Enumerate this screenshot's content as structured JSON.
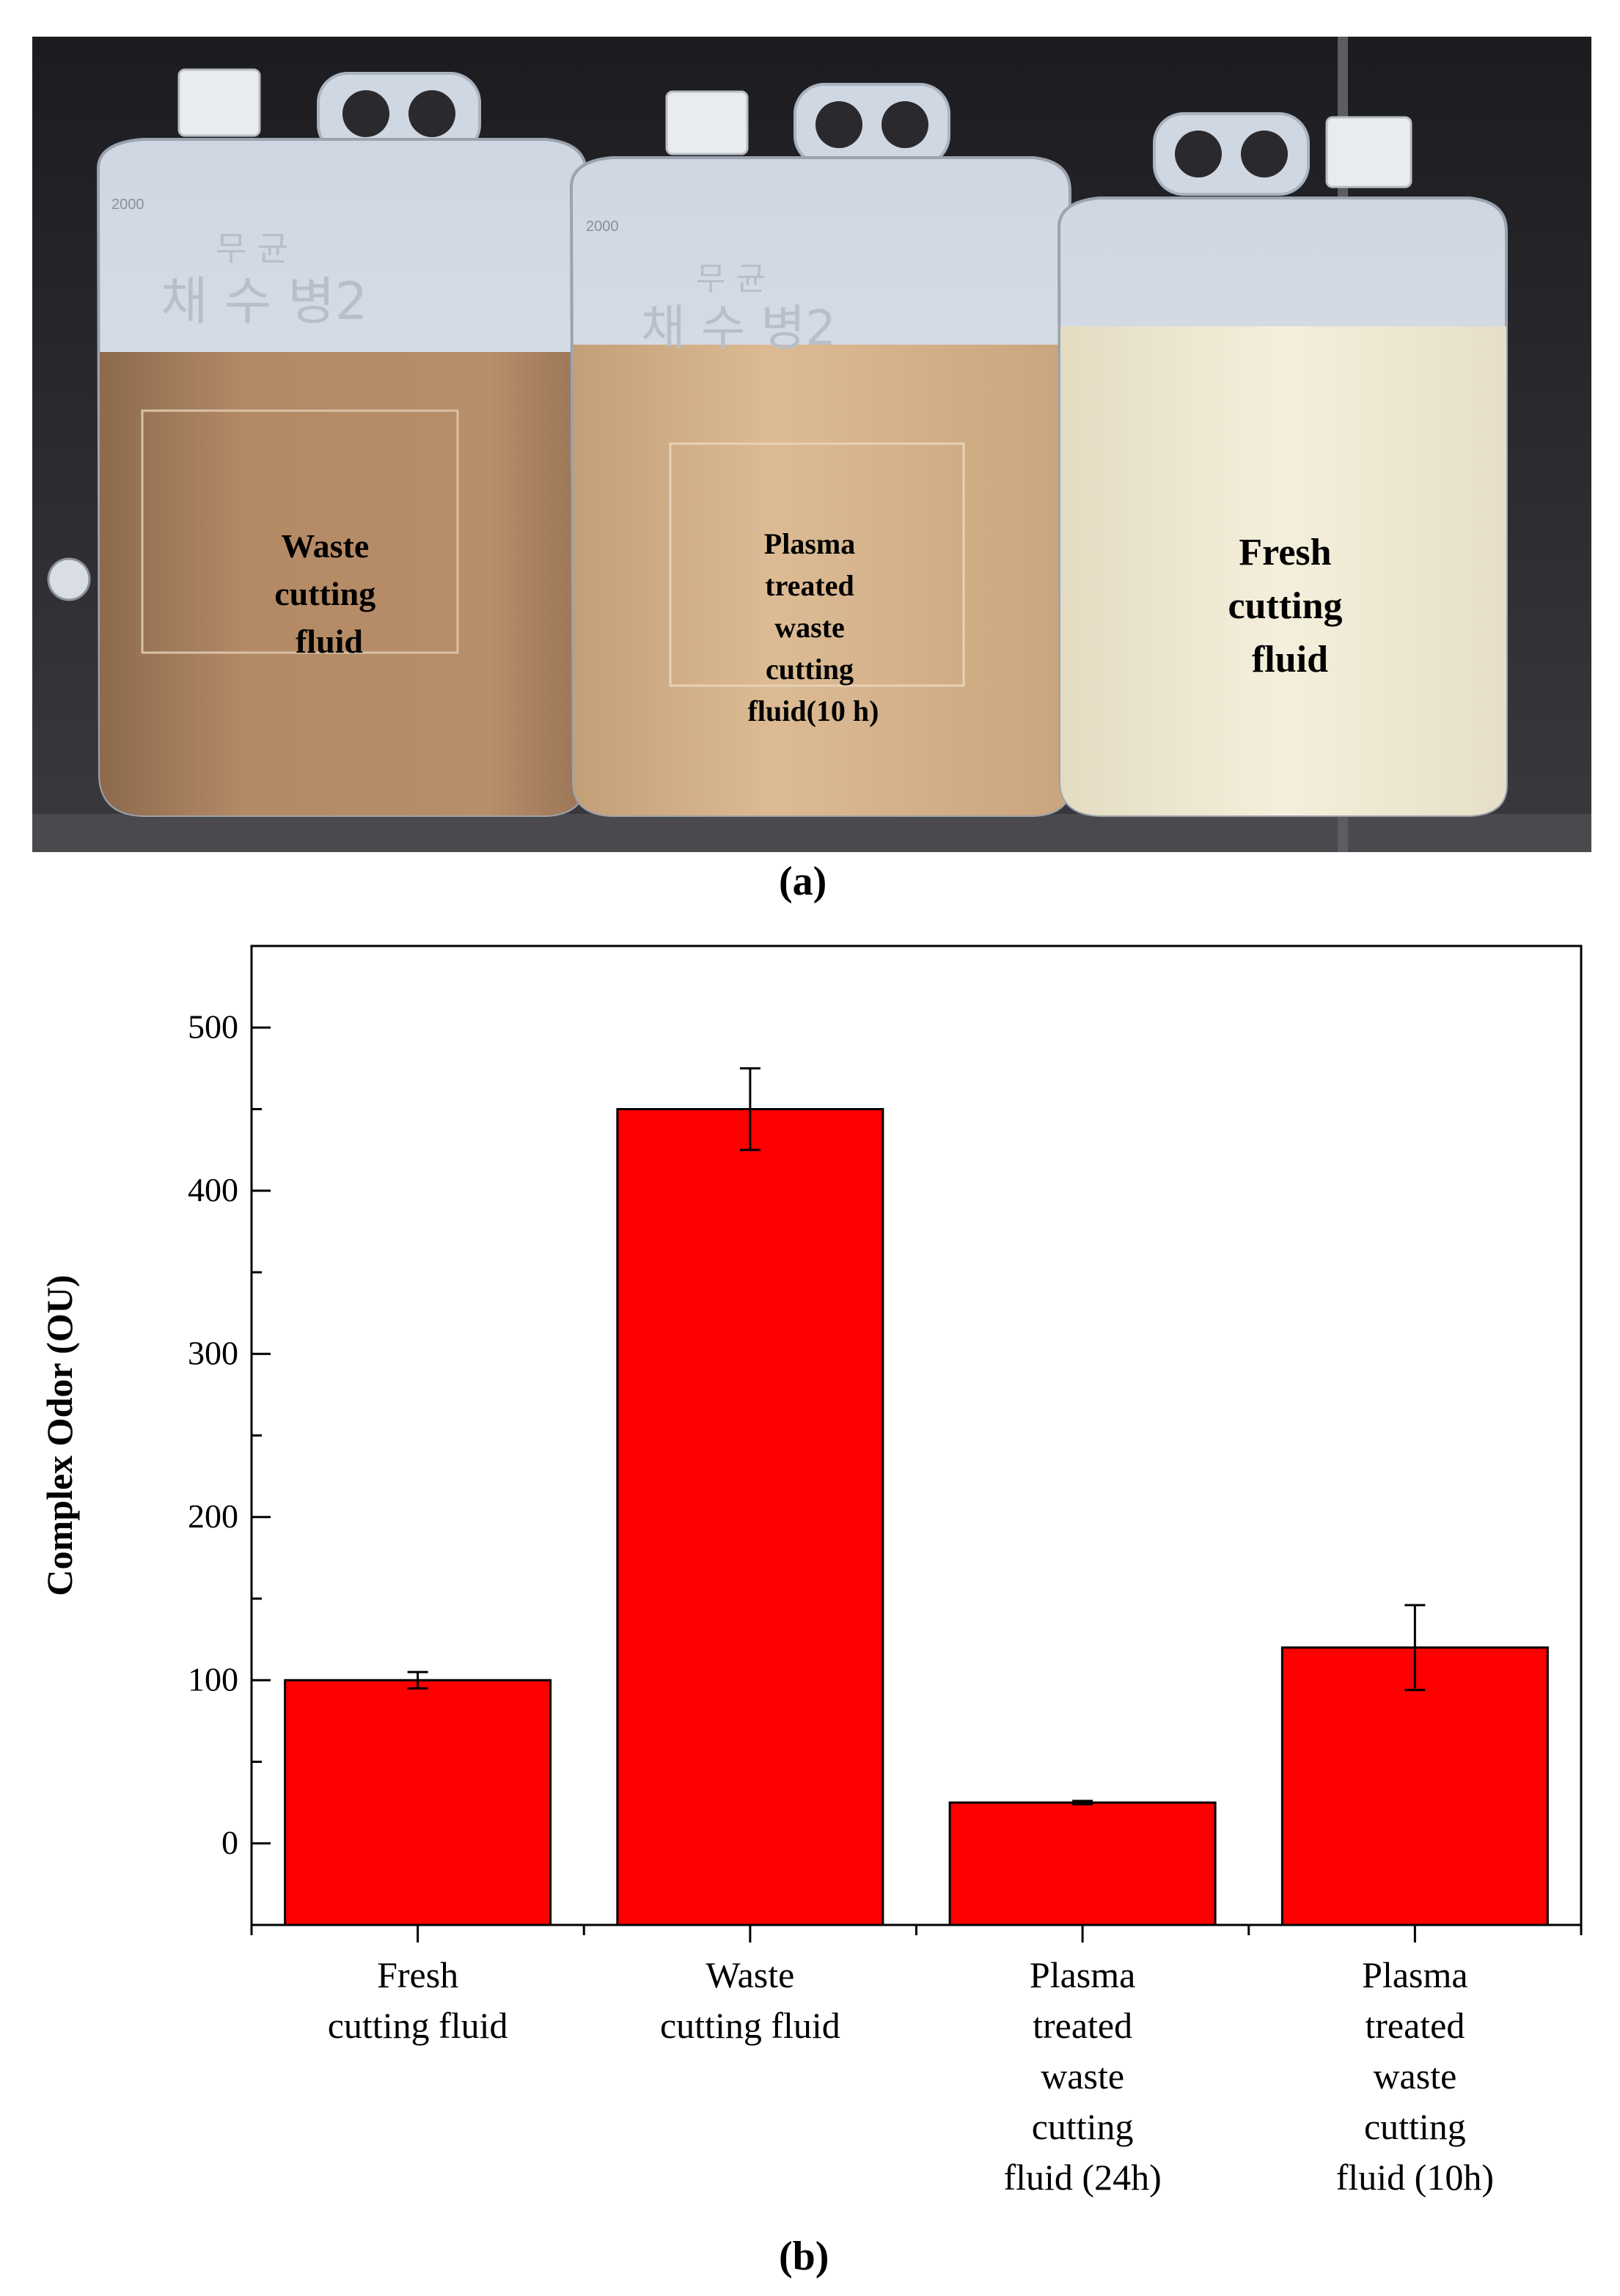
{
  "photo": {
    "labels": [
      [
        "Waste",
        "cutting",
        "fluid"
      ],
      [
        "Plasma",
        "treated",
        "waste",
        "cutting",
        "fluid(10 h)"
      ],
      [
        "Fresh",
        "cutting",
        "fluid"
      ]
    ],
    "jug_markings": {
      "volume_mark": "2000",
      "korean_text_line1": "무 균",
      "korean_text_line2": "채 수 병2"
    },
    "colors": {
      "background": "#2a2a2e",
      "waste_fluid": "#b48a66",
      "plasma_fluid": "#d9b68e",
      "fresh_fluid": "#f1ecd7",
      "jug_plastic": "#dde4ee"
    }
  },
  "panel_labels": {
    "a": "(a)",
    "b": "(b)"
  },
  "chart_data": {
    "type": "bar",
    "title": "",
    "ylabel": "Complex Odor (OU)",
    "xlabel": "",
    "ylim": [
      -50,
      550
    ],
    "yticks": [
      0,
      100,
      200,
      300,
      400,
      500
    ],
    "bar_color": "#ff0000",
    "categories": [
      [
        "Fresh",
        "cutting fluid"
      ],
      [
        "Waste",
        "cutting fluid"
      ],
      [
        "Plasma",
        "treated",
        "waste",
        "cutting",
        "fluid (24h)"
      ],
      [
        "Plasma",
        "treated",
        "waste",
        "cutting",
        "fluid (10h)"
      ]
    ],
    "values": [
      100,
      450,
      25,
      120
    ],
    "errors": [
      5,
      25,
      1,
      26
    ],
    "grid": false,
    "legend": "none"
  }
}
